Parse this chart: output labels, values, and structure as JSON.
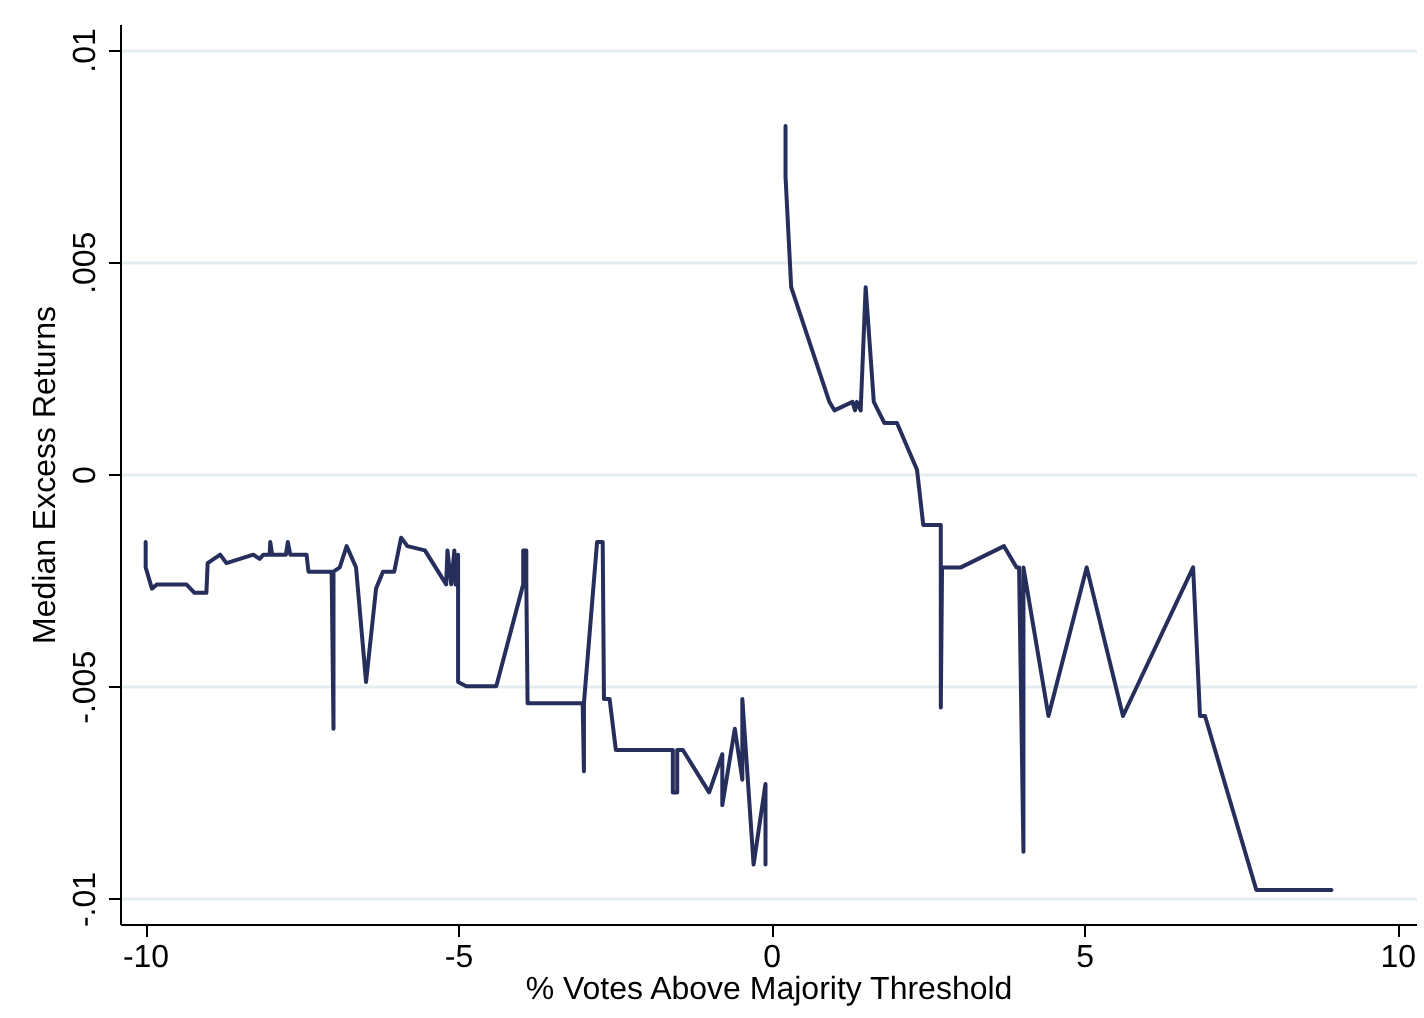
{
  "chart_data": {
    "type": "line",
    "xlabel": "% Votes Above Majority Threshold",
    "ylabel": "Median Excess Returns",
    "x": [
      -9.99,
      -9.99,
      -9.89,
      -9.81,
      -9.34,
      -9.21,
      -9.02,
      -9.0,
      -8.8,
      -8.7,
      -8.27,
      -8.17,
      -8.11,
      -8.01,
      -8.0,
      -7.97,
      -7.75,
      -7.72,
      -7.68,
      -7.42,
      -7.39,
      -7.02,
      -6.99,
      -6.99,
      -6.89,
      -6.78,
      -6.63,
      -6.47,
      -6.31,
      -6.2,
      -6.02,
      -5.91,
      -5.81,
      -5.53,
      -5.19,
      -5.17,
      -5.11,
      -5.06,
      -5.04,
      -5.0,
      -5.0,
      -4.87,
      -4.39,
      -3.96,
      -3.96,
      -3.91,
      -3.91,
      -3.89,
      -3.01,
      -2.99,
      -2.99,
      -2.78,
      -2.69,
      -2.67,
      -2.58,
      -2.48,
      -1.57,
      -1.57,
      -1.5,
      -1.5,
      -1.41,
      -0.99,
      -0.78,
      -0.78,
      -0.58,
      -0.46,
      -0.46,
      -0.28,
      -0.09,
      -0.09,
      0.07,
      0.23,
      0.23,
      0.32,
      0.93,
      1.01,
      1.3,
      1.34,
      1.37,
      1.43,
      1.51,
      1.64,
      1.81,
      2.01,
      2.33,
      2.43,
      2.71,
      2.71,
      2.73,
      3.03,
      3.72,
      3.92,
      3.96,
      4.03,
      4.03,
      4.43,
      5.04,
      5.62,
      6.74,
      6.85,
      6.93,
      7.75,
      8.95
    ],
    "series": [
      {
        "color": "#262e5c",
        "values": [
          -0.0016,
          -0.0022,
          -0.0027,
          -0.0026,
          -0.0026,
          -0.0028,
          -0.0028,
          -0.0021,
          -0.0019,
          -0.0021,
          -0.0019,
          -0.002,
          -0.0019,
          -0.0019,
          -0.0016,
          -0.0019,
          -0.0019,
          -0.0016,
          -0.0019,
          -0.0019,
          -0.0023,
          -0.0023,
          -0.006,
          -0.0023,
          -0.0022,
          -0.0017,
          -0.0022,
          -0.0049,
          -0.0027,
          -0.0023,
          -0.0023,
          -0.0015,
          -0.0017,
          -0.0018,
          -0.0026,
          -0.0018,
          -0.0026,
          -0.0018,
          -0.0026,
          -0.0019,
          -0.0049,
          -0.005,
          -0.005,
          -0.0026,
          -0.0018,
          -0.0018,
          -0.0026,
          -0.0054,
          -0.0054,
          -0.007,
          -0.0054,
          -0.0016,
          -0.0016,
          -0.0053,
          -0.0053,
          -0.0065,
          -0.0065,
          -0.0075,
          -0.0075,
          -0.0065,
          -0.0065,
          -0.0075,
          -0.0066,
          -0.0078,
          -0.006,
          -0.0072,
          -0.0053,
          -0.0092,
          -0.0073,
          -0.0092,
          null,
          0.0082,
          0.007,
          0.0044,
          0.0017,
          0.0015,
          0.0017,
          0.0015,
          0.0017,
          0.0015,
          0.0044,
          0.0017,
          0.0012,
          0.0012,
          0.0001,
          -0.0012,
          -0.0012,
          -0.0055,
          -0.0022,
          -0.0022,
          -0.0017,
          -0.0022,
          -0.0022,
          -0.0089,
          -0.0022,
          -0.0057,
          -0.0022,
          -0.0057,
          -0.0022,
          -0.0057,
          -0.0057,
          -0.0098,
          -0.0098
        ]
      }
    ],
    "xlim": [
      -10.4,
      10.3
    ],
    "ylim": [
      -0.0106,
      0.0106
    ],
    "xticks": [
      -10,
      -5,
      0,
      5,
      10
    ],
    "yticks": [
      {
        "value": -0.01,
        "label": "-.01"
      },
      {
        "value": -0.005,
        "label": "-.005"
      },
      0,
      {
        "value": 0.005,
        "label": ".005"
      },
      {
        "value": 0.01,
        "label": ".01"
      }
    ],
    "grid": "y",
    "marker": "none",
    "line_style": "solid"
  }
}
